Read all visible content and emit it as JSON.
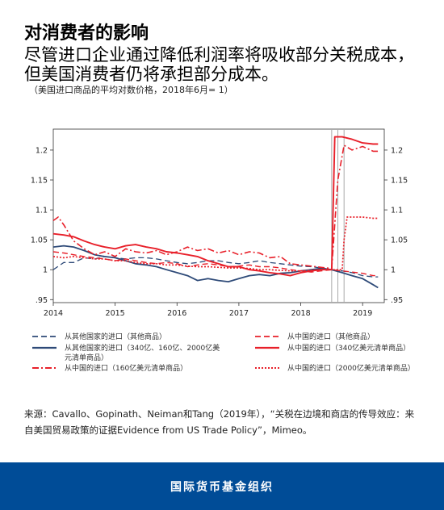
{
  "title": "对消费者的影响",
  "subtitle": "尽管进口企业通过降低利润率将吸收部分关税成本，但美国消费者仍将承担部分成本。",
  "note": "（美国进口商品的平均对数价格，2018年6月= 1）",
  "source": "来源：Cavallo、Gopinath、Neiman和Tang（2019年），“关税在边境和商店的传导效应：来自美国贸易政策的证据Evidence from US Trade Policy”，Mimeo。",
  "footer": "国际货币基金组织",
  "colors": {
    "navy": "#2e4a78",
    "red": "#e8202a",
    "footer_bg": "#004c97"
  },
  "chart_data": {
    "type": "line",
    "title": "",
    "xlabel": "",
    "ylabel": "",
    "xlim": [
      2014.0,
      2019.35
    ],
    "ylim": [
      0.945,
      1.235
    ],
    "x_ticks": [
      2014,
      2015,
      2016,
      2017,
      2018,
      2019
    ],
    "x_tick_labels": [
      "2014",
      "2015",
      "2016",
      "2017",
      "2018",
      "2019"
    ],
    "y_ticks": [
      0.95,
      1.0,
      1.05,
      1.1,
      1.15,
      1.2
    ],
    "y_tick_labels": [
      ".95",
      "1",
      "1.05",
      "1.1",
      "1.15",
      "1.2"
    ],
    "vlines": [
      2018.5,
      2018.6,
      2018.7
    ],
    "grid": false,
    "legend_position": "bottom",
    "series": [
      {
        "name": "从其他国家的进口（其他商品）",
        "color": "#2e4a78",
        "style": "dashed",
        "width": 1.3,
        "x": [
          2014.0,
          2014.17,
          2014.33,
          2014.5,
          2014.67,
          2014.83,
          2015.0,
          2015.17,
          2015.33,
          2015.5,
          2015.67,
          2015.83,
          2016.0,
          2016.17,
          2016.33,
          2016.5,
          2016.67,
          2016.83,
          2017.0,
          2017.17,
          2017.33,
          2017.5,
          2017.67,
          2017.83,
          2018.0,
          2018.17,
          2018.33,
          2018.5,
          2018.67,
          2018.83,
          2019.0,
          2019.17,
          2019.25
        ],
        "y": [
          1.0,
          1.012,
          1.012,
          1.02,
          1.018,
          1.022,
          1.02,
          1.018,
          1.02,
          1.02,
          1.018,
          1.015,
          1.012,
          1.01,
          1.012,
          1.015,
          1.015,
          1.012,
          1.01,
          1.012,
          1.015,
          1.012,
          1.01,
          1.008,
          1.006,
          1.005,
          1.003,
          1.0,
          0.998,
          0.995,
          0.99,
          0.988,
          0.988
        ]
      },
      {
        "name": "从其他国家的进口（340亿、160亿、2000亿美元清单商品）",
        "color": "#2e4a78",
        "style": "solid",
        "width": 1.8,
        "x": [
          2014.0,
          2014.17,
          2014.33,
          2014.5,
          2014.67,
          2014.83,
          2015.0,
          2015.17,
          2015.33,
          2015.5,
          2015.67,
          2015.83,
          2016.0,
          2016.17,
          2016.33,
          2016.5,
          2016.67,
          2016.83,
          2017.0,
          2017.17,
          2017.33,
          2017.5,
          2017.67,
          2017.83,
          2018.0,
          2018.17,
          2018.33,
          2018.5,
          2018.67,
          2018.83,
          2019.0,
          2019.17,
          2019.25
        ],
        "y": [
          1.038,
          1.04,
          1.038,
          1.032,
          1.025,
          1.022,
          1.02,
          1.015,
          1.01,
          1.008,
          1.005,
          1.0,
          0.995,
          0.99,
          0.982,
          0.985,
          0.982,
          0.98,
          0.985,
          0.99,
          0.992,
          0.99,
          0.994,
          0.995,
          0.998,
          1.0,
          1.002,
          1.0,
          0.995,
          0.99,
          0.985,
          0.975,
          0.97
        ]
      },
      {
        "name": "从中国的进口（160亿美元清单商品）",
        "color": "#e8202a",
        "style": "dashdot",
        "width": 1.6,
        "x": [
          2014.0,
          2014.08,
          2014.17,
          2014.33,
          2014.5,
          2014.67,
          2014.83,
          2015.0,
          2015.17,
          2015.33,
          2015.5,
          2015.67,
          2015.83,
          2016.0,
          2016.17,
          2016.33,
          2016.5,
          2016.67,
          2016.83,
          2017.0,
          2017.17,
          2017.33,
          2017.5,
          2017.67,
          2017.83,
          2018.0,
          2018.17,
          2018.33,
          2018.5,
          2018.6,
          2018.7,
          2018.83,
          2019.0,
          2019.17,
          2019.25
        ],
        "y": [
          1.082,
          1.088,
          1.075,
          1.048,
          1.035,
          1.025,
          1.03,
          1.022,
          1.035,
          1.03,
          1.028,
          1.032,
          1.025,
          1.03,
          1.038,
          1.032,
          1.035,
          1.028,
          1.032,
          1.025,
          1.03,
          1.028,
          1.02,
          1.022,
          1.01,
          1.008,
          1.006,
          1.004,
          1.002,
          1.15,
          1.208,
          1.2,
          1.206,
          1.198,
          1.198
        ]
      },
      {
        "name": "从中国的进口（其他商品）",
        "color": "#e8202a",
        "style": "dashed",
        "width": 1.4,
        "x": [
          2014.0,
          2014.17,
          2014.33,
          2014.5,
          2014.67,
          2014.83,
          2015.0,
          2015.17,
          2015.33,
          2015.5,
          2015.67,
          2015.83,
          2016.0,
          2016.17,
          2016.33,
          2016.5,
          2016.67,
          2016.83,
          2017.0,
          2017.17,
          2017.33,
          2017.5,
          2017.67,
          2017.83,
          2018.0,
          2018.17,
          2018.33,
          2018.5,
          2018.67,
          2018.83,
          2019.0,
          2019.17,
          2019.25
        ],
        "y": [
          1.03,
          1.028,
          1.025,
          1.022,
          1.02,
          1.018,
          1.015,
          1.018,
          1.015,
          1.012,
          1.01,
          1.012,
          1.01,
          1.005,
          1.008,
          1.01,
          1.008,
          1.005,
          1.006,
          1.008,
          1.005,
          1.005,
          1.003,
          1.0,
          0.998,
          0.996,
          0.998,
          1.0,
          0.998,
          0.996,
          0.994,
          0.99,
          0.99
        ]
      },
      {
        "name": "从中国的进口（340亿美元清单商品）",
        "color": "#e8202a",
        "style": "solid",
        "width": 1.9,
        "x": [
          2014.0,
          2014.17,
          2014.33,
          2014.5,
          2014.67,
          2014.83,
          2015.0,
          2015.17,
          2015.33,
          2015.5,
          2015.67,
          2015.83,
          2016.0,
          2016.17,
          2016.33,
          2016.5,
          2016.67,
          2016.83,
          2017.0,
          2017.17,
          2017.33,
          2017.5,
          2017.67,
          2017.83,
          2018.0,
          2018.17,
          2018.33,
          2018.45,
          2018.5,
          2018.55,
          2018.67,
          2018.83,
          2019.0,
          2019.17,
          2019.25
        ],
        "y": [
          1.06,
          1.058,
          1.055,
          1.048,
          1.042,
          1.038,
          1.035,
          1.04,
          1.042,
          1.038,
          1.035,
          1.03,
          1.028,
          1.025,
          1.022,
          1.015,
          1.01,
          1.005,
          1.005,
          1.0,
          0.998,
          0.995,
          0.993,
          0.99,
          0.995,
          0.998,
          1.0,
          1.0,
          1.0,
          1.222,
          1.222,
          1.218,
          1.212,
          1.21,
          1.21
        ]
      },
      {
        "name": "从中国的进口（2000亿美元清单商品）",
        "color": "#e8202a",
        "style": "dotted",
        "width": 1.7,
        "x": [
          2014.0,
          2014.17,
          2014.33,
          2014.5,
          2014.67,
          2014.83,
          2015.0,
          2015.17,
          2015.33,
          2015.5,
          2015.67,
          2015.83,
          2016.0,
          2016.17,
          2016.33,
          2016.5,
          2016.67,
          2016.83,
          2017.0,
          2017.17,
          2017.33,
          2017.5,
          2017.67,
          2017.83,
          2018.0,
          2018.17,
          2018.33,
          2018.5,
          2018.67,
          2018.7,
          2018.75,
          2018.83,
          2019.0,
          2019.17,
          2019.25
        ],
        "y": [
          1.022,
          1.02,
          1.022,
          1.02,
          1.018,
          1.018,
          1.015,
          1.015,
          1.012,
          1.01,
          1.01,
          1.008,
          1.008,
          1.006,
          1.005,
          1.005,
          1.004,
          1.003,
          1.003,
          1.002,
          1.0,
          1.0,
          0.999,
          0.998,
          0.998,
          0.999,
          1.0,
          1.0,
          1.0,
          1.05,
          1.088,
          1.088,
          1.088,
          1.086,
          1.086
        ]
      }
    ]
  }
}
